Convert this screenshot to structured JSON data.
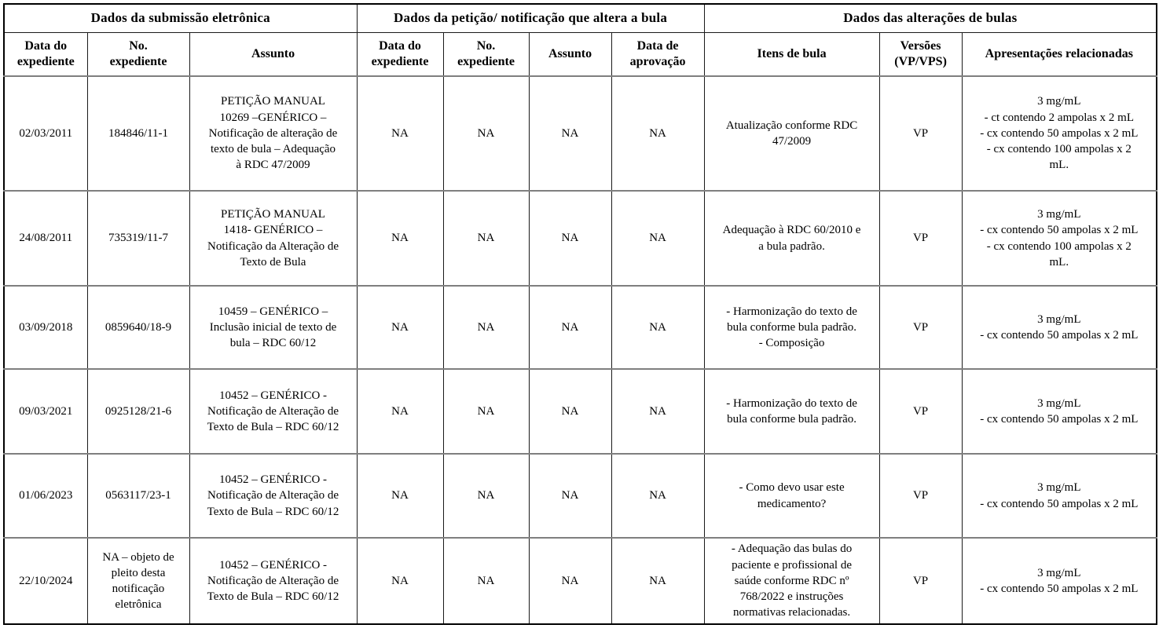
{
  "table": {
    "groups": [
      {
        "label": "Dados da submissão eletrônica",
        "span": 3
      },
      {
        "label": "Dados da petição/ notificação que altera a bula",
        "span": 4
      },
      {
        "label": "Dados das alterações de bulas",
        "span": 3
      }
    ],
    "columns": [
      {
        "label": "Data do\nexpediente"
      },
      {
        "label": "No.\nexpediente"
      },
      {
        "label": "Assunto"
      },
      {
        "label": "Data do\nexpediente"
      },
      {
        "label": "No.\nexpediente"
      },
      {
        "label": "Assunto"
      },
      {
        "label": "Data de\naprovação"
      },
      {
        "label": "Itens de bula"
      },
      {
        "label": "Versões\n(VP/VPS)"
      },
      {
        "label": "Apresentações relacionadas"
      }
    ],
    "rows": [
      {
        "cells": [
          "02/03/2011",
          "184846/11-1",
          "PETIÇÃO MANUAL\n10269 –GENÉRICO –\nNotificação de alteração de\ntexto de bula – Adequação\nà RDC 47/2009",
          "NA",
          "NA",
          "NA",
          "NA",
          "Atualização conforme RDC\n47/2009",
          "VP",
          "3 mg/mL\n- ct contendo 2 ampolas x 2 mL\n- cx contendo 50 ampolas x 2 mL\n- cx contendo 100 ampolas x 2\nmL."
        ]
      },
      {
        "cells": [
          "24/08/2011",
          "735319/11-7",
          "PETIÇÃO MANUAL\n1418- GENÉRICO –\nNotificação da Alteração de\nTexto de Bula",
          "NA",
          "NA",
          "NA",
          "NA",
          "Adequação à RDC 60/2010 e\na bula padrão.",
          "VP",
          "3 mg/mL\n- cx contendo 50 ampolas x 2 mL\n- cx contendo 100 ampolas x 2\nmL."
        ]
      },
      {
        "cells": [
          "03/09/2018",
          "0859640/18-9",
          "10459 – GENÉRICO –\nInclusão inicial de texto de\nbula – RDC 60/12",
          "NA",
          "NA",
          "NA",
          "NA",
          "- Harmonização do texto de\nbula conforme bula padrão.\n- Composição",
          "VP",
          "3 mg/mL\n- cx contendo 50 ampolas x 2 mL"
        ]
      },
      {
        "cells": [
          "09/03/2021",
          "0925128/21-6",
          "10452 – GENÉRICO -\nNotificação de Alteração de\nTexto de Bula – RDC 60/12",
          "NA",
          "NA",
          "NA",
          "NA",
          "- Harmonização do texto de\nbula conforme bula padrão.",
          "VP",
          "3 mg/mL\n- cx contendo 50 ampolas x 2 mL"
        ]
      },
      {
        "cells": [
          "01/06/2023",
          "0563117/23-1",
          "10452 – GENÉRICO -\nNotificação de Alteração de\nTexto de Bula – RDC 60/12",
          "NA",
          "NA",
          "NA",
          "NA",
          "- Como devo usar este\nmedicamento?",
          "VP",
          "3 mg/mL\n- cx contendo 50 ampolas x 2 mL"
        ]
      },
      {
        "cells": [
          "22/10/2024",
          "NA – objeto de\npleito desta\nnotificação\neletrônica",
          "10452 – GENÉRICO -\nNotificação de Alteração de\nTexto de Bula – RDC 60/12",
          "NA",
          "NA",
          "NA",
          "NA",
          "- Adequação das bulas do\npaciente e profissional de\nsaúde conforme RDC nº\n768/2022 e instruções\nnormativas relacionadas.",
          "VP",
          "3 mg/mL\n- cx contendo 50 ampolas x 2 mL"
        ]
      }
    ]
  }
}
